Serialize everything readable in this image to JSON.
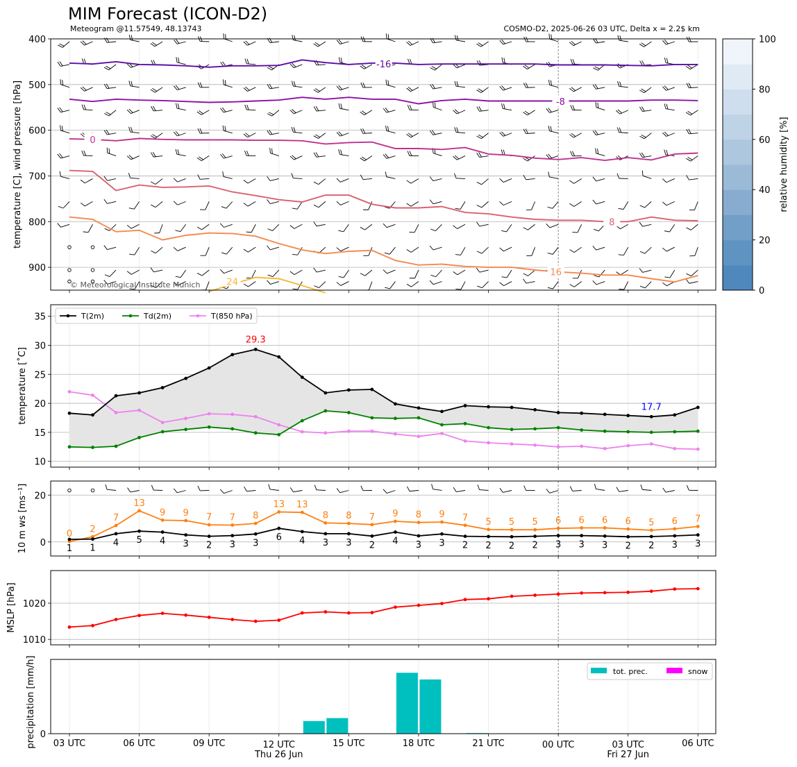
{
  "header": {
    "title": "MIM Forecast (ICON-D2)",
    "subtitle_left": "Meteogram @11.57549, 48.13743",
    "subtitle_right": "COSMO-D2, 2025-06-26 03 UTC, Delta x = 2.2$ km",
    "copyright": "© Meteorological Institute Munich"
  },
  "x_axis": {
    "hours": [
      3,
      4,
      5,
      6,
      7,
      8,
      9,
      10,
      11,
      12,
      13,
      14,
      15,
      16,
      17,
      18,
      19,
      20,
      21,
      22,
      23,
      24,
      25,
      26,
      27,
      28,
      29,
      30
    ],
    "tick_labels": [
      "03 UTC",
      "06 UTC",
      "09 UTC",
      "12 UTC",
      "15 UTC",
      "18 UTC",
      "21 UTC",
      "00 UTC",
      "03 UTC",
      "06 UTC"
    ],
    "day_labels": [
      "Thu 26 Jun",
      "Fri 27 Jun"
    ]
  },
  "chart_data": [
    {
      "type": "line",
      "name": "pressure-contour",
      "ylabel": "temperature [C], wind pressure [hPa]",
      "ylim": [
        950,
        400
      ],
      "yticks": [
        400,
        500,
        600,
        700,
        800,
        900
      ],
      "colorbar": {
        "label": "relative humidity [%]",
        "ticks": [
          0,
          20,
          40,
          60,
          80,
          100
        ]
      },
      "contours": [
        {
          "label": "-16",
          "color": "#5b0ca8",
          "values": [
            453,
            455,
            450,
            456,
            457,
            459,
            462,
            459,
            459,
            458,
            446,
            452,
            456,
            453,
            453,
            456,
            455,
            455,
            455,
            455,
            455,
            457,
            457,
            457,
            458,
            459,
            456,
            456
          ]
        },
        {
          "label": "-8",
          "color": "#8d10a6",
          "values": [
            532,
            537,
            532,
            534,
            535,
            537,
            539,
            538,
            536,
            534,
            528,
            532,
            528,
            532,
            532,
            542,
            535,
            532,
            536,
            536,
            536,
            536,
            536,
            536,
            536,
            534,
            534,
            535
          ]
        },
        {
          "label": "0",
          "color": "#c0318f",
          "values": [
            619,
            620,
            623,
            618,
            620,
            621,
            621,
            621,
            622,
            622,
            623,
            630,
            627,
            626,
            640,
            640,
            642,
            638,
            652,
            655,
            661,
            664,
            660,
            666,
            660,
            665,
            652,
            650
          ]
        },
        {
          "label": "8",
          "color": "#d9616d",
          "values": [
            688,
            690,
            732,
            720,
            725,
            724,
            722,
            735,
            743,
            752,
            757,
            742,
            742,
            762,
            770,
            770,
            767,
            780,
            783,
            790,
            795,
            797,
            797,
            800,
            800,
            790,
            797,
            798
          ]
        },
        {
          "label": "16",
          "color": "#f3894e",
          "values": [
            790,
            795,
            822,
            819,
            840,
            830,
            825,
            826,
            832,
            848,
            862,
            870,
            865,
            863,
            885,
            895,
            893,
            898,
            900,
            900,
            906,
            910,
            913,
            917,
            917,
            925,
            932,
            918
          ]
        },
        {
          "label": "24",
          "color": "#f7b733",
          "values": [
            null,
            null,
            null,
            null,
            null,
            null,
            953,
            937,
            922,
            925,
            940,
            956,
            null,
            null,
            null,
            null,
            null,
            null,
            null,
            null,
            null,
            null,
            null,
            null,
            null,
            null,
            null,
            null
          ]
        }
      ]
    },
    {
      "type": "line",
      "name": "temperature",
      "ylabel": "temperature [$^\\circ$C]",
      "ylim": [
        9,
        37
      ],
      "yticks": [
        10,
        15,
        20,
        25,
        30,
        35
      ],
      "annotations": {
        "max_label": "29.3",
        "min_label": "17.7"
      },
      "series": [
        {
          "name": "T(2m)",
          "color": "#000000",
          "values": [
            18.3,
            18.0,
            21.3,
            21.8,
            22.7,
            24.3,
            26.1,
            28.4,
            29.3,
            28.0,
            24.5,
            21.8,
            22.3,
            22.4,
            19.9,
            19.2,
            18.6,
            19.6,
            19.4,
            19.3,
            18.9,
            18.4,
            18.3,
            18.1,
            17.9,
            17.7,
            18.0,
            19.3
          ]
        },
        {
          "name": "Td(2m)",
          "color": "#008000",
          "values": [
            12.5,
            12.4,
            12.6,
            14.1,
            15.1,
            15.5,
            15.9,
            15.6,
            14.9,
            14.6,
            17.0,
            18.7,
            18.4,
            17.5,
            17.4,
            17.5,
            16.3,
            16.5,
            15.8,
            15.5,
            15.6,
            15.8,
            15.4,
            15.2,
            15.1,
            15.0,
            15.1,
            15.2
          ]
        },
        {
          "name": "T(850 hPa)",
          "color": "#ee82ee",
          "values": [
            22.0,
            21.4,
            18.4,
            18.8,
            16.7,
            17.4,
            18.2,
            18.1,
            17.7,
            16.3,
            15.1,
            14.9,
            15.2,
            15.2,
            14.7,
            14.3,
            14.8,
            13.5,
            13.2,
            13.0,
            12.8,
            12.5,
            12.6,
            12.2,
            12.7,
            13.0,
            12.2,
            12.1
          ]
        }
      ]
    },
    {
      "type": "line",
      "name": "wind",
      "ylabel": "10 m ws [ms$^{-1}$]",
      "ylim": [
        -6,
        26
      ],
      "yticks": [
        0,
        20
      ],
      "series": [
        {
          "name": "gust",
          "color": "#ff7f0e",
          "values": [
            0.2,
            2.2,
            7.0,
            13.3,
            9.3,
            9.1,
            7.3,
            7.2,
            7.9,
            12.8,
            12.6,
            8.1,
            7.9,
            7.4,
            8.8,
            8.3,
            8.5,
            7.1,
            5.3,
            5.2,
            5.2,
            5.8,
            6.0,
            6.0,
            5.5,
            5.0,
            5.6,
            6.6
          ],
          "labels": [
            "0",
            "2",
            "7",
            "13",
            "9",
            "9",
            "7",
            "7",
            "8",
            "13",
            "13",
            "8",
            "8",
            "7",
            "9",
            "8",
            "9",
            "7",
            "5",
            "5",
            "5",
            "6",
            "6",
            "6",
            "6",
            "5",
            "6",
            "7"
          ]
        },
        {
          "name": "mean",
          "color": "#000000",
          "values": [
            1.1,
            1.2,
            3.5,
            4.6,
            4.2,
            3.0,
            2.4,
            2.7,
            3.4,
            5.8,
            4.4,
            3.5,
            3.5,
            2.5,
            4.2,
            2.6,
            3.4,
            2.4,
            2.3,
            2.2,
            2.4,
            2.7,
            2.7,
            2.5,
            2.2,
            2.3,
            2.6,
            3.0
          ],
          "labels": [
            "1",
            "1",
            "4",
            "5",
            "4",
            "3",
            "2",
            "3",
            "3",
            "6",
            "4",
            "3",
            "3",
            "2",
            "4",
            "3",
            "3",
            "2",
            "2",
            "2",
            "2",
            "3",
            "3",
            "3",
            "2",
            "2",
            "3",
            "3"
          ]
        }
      ]
    },
    {
      "type": "line",
      "name": "mslp",
      "ylabel": "MSLP [hPa]",
      "ylim": [
        1008.5,
        1029.0
      ],
      "yticks": [
        1010,
        1020
      ],
      "series": [
        {
          "name": "MSLP",
          "color": "#ff0000",
          "values": [
            1013.4,
            1013.8,
            1015.5,
            1016.6,
            1017.2,
            1016.7,
            1016.1,
            1015.5,
            1015.0,
            1015.3,
            1017.3,
            1017.6,
            1017.3,
            1017.4,
            1018.9,
            1019.4,
            1019.9,
            1021.0,
            1021.2,
            1021.9,
            1022.2,
            1022.5,
            1022.8,
            1022.9,
            1023.0,
            1023.3,
            1023.9,
            1024.0
          ]
        }
      ]
    },
    {
      "type": "bar",
      "name": "precipitation",
      "ylabel": "precipitation [mm/h]",
      "ylim": [
        0,
        1.0
      ],
      "yticks": [
        0
      ],
      "legend": [
        "tot. prec.",
        "snow"
      ],
      "colors": {
        "prec": "#00bfbf",
        "snow": "#ff00ff"
      },
      "values": [
        0,
        0,
        0.005,
        0.005,
        0,
        0,
        0,
        0,
        0,
        0.004,
        0.17,
        0.21,
        0,
        0.004,
        0.82,
        0.73,
        0.004,
        0.008,
        0,
        0,
        0,
        0,
        0,
        0,
        0,
        0,
        0,
        0
      ],
      "snow": [
        0,
        0,
        0,
        0,
        0,
        0,
        0,
        0,
        0,
        0,
        0,
        0,
        0,
        0,
        0,
        0,
        0,
        0,
        0,
        0,
        0,
        0,
        0,
        0,
        0,
        0,
        0,
        0
      ]
    }
  ],
  "colors": {
    "grid": "#b0b0b0",
    "frame": "#000000",
    "fill": "#e5e5e5"
  }
}
